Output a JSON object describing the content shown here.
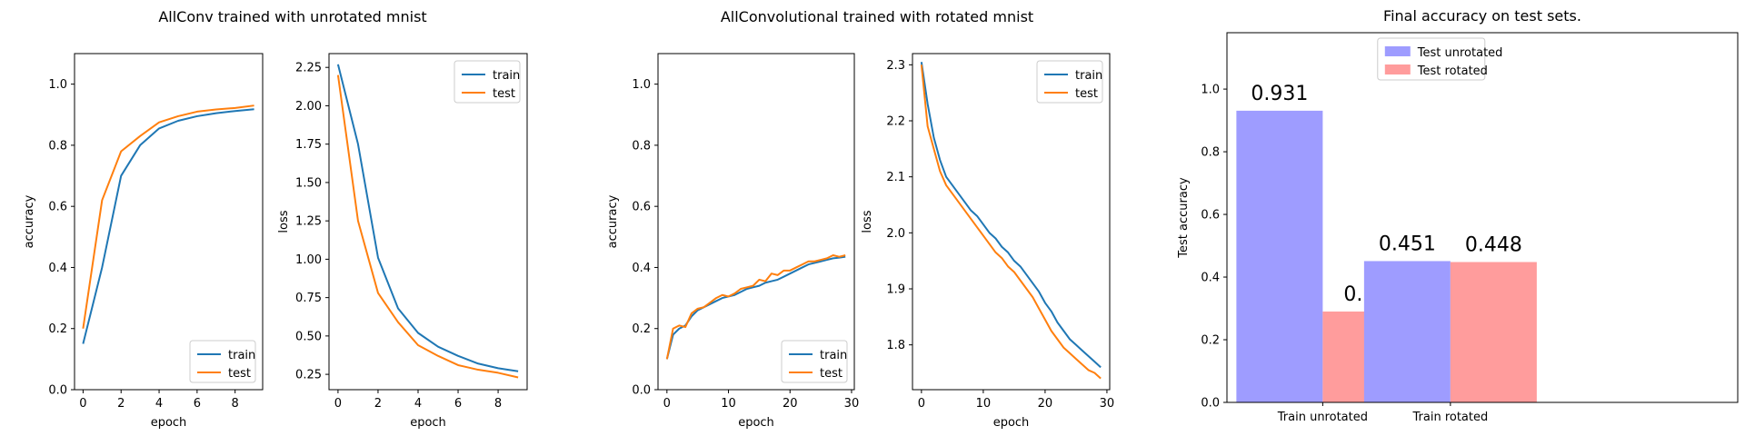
{
  "suptitles": {
    "left": "AllConv trained with unrotated mnist",
    "middle": "AllConvolutional trained with rotated mnist"
  },
  "colors": {
    "train": "#1f77b4",
    "test": "#ff7f0e",
    "bar_unrotated": "#9e9cff",
    "bar_rotated": "#ff9c9c"
  },
  "chart_data": [
    {
      "type": "line",
      "xlabel": "epoch",
      "ylabel": "accuracy",
      "xlim": [
        -0.45,
        9.45
      ],
      "ylim": [
        0.0,
        1.1
      ],
      "xticks": [
        0,
        2,
        4,
        6,
        8
      ],
      "yticks": [
        0.0,
        0.2,
        0.4,
        0.6,
        0.8,
        1.0
      ],
      "legend": "lower right",
      "series": [
        {
          "name": "train",
          "x": [
            0,
            1,
            2,
            3,
            4,
            5,
            6,
            7,
            8,
            9
          ],
          "y": [
            0.15,
            0.4,
            0.7,
            0.8,
            0.855,
            0.88,
            0.895,
            0.905,
            0.912,
            0.918
          ]
        },
        {
          "name": "test",
          "x": [
            0,
            1,
            2,
            3,
            4,
            5,
            6,
            7,
            8,
            9
          ],
          "y": [
            0.2,
            0.62,
            0.78,
            0.83,
            0.875,
            0.895,
            0.91,
            0.917,
            0.922,
            0.93
          ]
        }
      ]
    },
    {
      "type": "line",
      "xlabel": "epoch",
      "ylabel": "loss",
      "xlim": [
        -0.45,
        9.45
      ],
      "ylim": [
        0.15,
        2.34
      ],
      "xticks": [
        0,
        2,
        4,
        6,
        8
      ],
      "yticks": [
        0.25,
        0.5,
        0.75,
        1.0,
        1.25,
        1.5,
        1.75,
        2.0,
        2.25
      ],
      "legend": "upper right",
      "series": [
        {
          "name": "train",
          "x": [
            0,
            1,
            2,
            3,
            4,
            5,
            6,
            7,
            8,
            9
          ],
          "y": [
            2.27,
            1.75,
            1.01,
            0.68,
            0.52,
            0.43,
            0.37,
            0.32,
            0.29,
            0.27
          ]
        },
        {
          "name": "test",
          "x": [
            0,
            1,
            2,
            3,
            4,
            5,
            6,
            7,
            8,
            9
          ],
          "y": [
            2.2,
            1.25,
            0.78,
            0.59,
            0.44,
            0.37,
            0.31,
            0.28,
            0.26,
            0.23
          ]
        }
      ]
    },
    {
      "type": "line",
      "xlabel": "epoch",
      "ylabel": "accuracy",
      "xlim": [
        -1.45,
        30.45
      ],
      "ylim": [
        0.0,
        1.1
      ],
      "xticks": [
        0,
        10,
        20,
        30
      ],
      "yticks": [
        0.0,
        0.2,
        0.4,
        0.6,
        0.8,
        1.0
      ],
      "legend": "lower right",
      "series": [
        {
          "name": "train",
          "x": [
            0,
            1,
            2,
            3,
            4,
            5,
            6,
            7,
            8,
            9,
            10,
            11,
            12,
            13,
            14,
            15,
            16,
            17,
            18,
            19,
            20,
            21,
            22,
            23,
            24,
            25,
            26,
            27,
            28,
            29
          ],
          "y": [
            0.1,
            0.18,
            0.2,
            0.21,
            0.24,
            0.26,
            0.27,
            0.28,
            0.29,
            0.3,
            0.305,
            0.31,
            0.32,
            0.33,
            0.335,
            0.34,
            0.35,
            0.355,
            0.36,
            0.37,
            0.38,
            0.39,
            0.4,
            0.41,
            0.415,
            0.42,
            0.425,
            0.43,
            0.432,
            0.435
          ]
        },
        {
          "name": "test",
          "x": [
            0,
            1,
            2,
            3,
            4,
            5,
            6,
            7,
            8,
            9,
            10,
            11,
            12,
            13,
            14,
            15,
            16,
            17,
            18,
            19,
            20,
            21,
            22,
            23,
            24,
            25,
            26,
            27,
            28,
            29
          ],
          "y": [
            0.1,
            0.2,
            0.21,
            0.205,
            0.25,
            0.265,
            0.27,
            0.285,
            0.3,
            0.31,
            0.305,
            0.315,
            0.33,
            0.335,
            0.34,
            0.36,
            0.355,
            0.38,
            0.375,
            0.39,
            0.39,
            0.4,
            0.41,
            0.42,
            0.42,
            0.425,
            0.43,
            0.44,
            0.435,
            0.44
          ]
        }
      ]
    },
    {
      "type": "line",
      "xlabel": "epoch",
      "ylabel": "loss",
      "xlim": [
        -1.45,
        30.45
      ],
      "ylim": [
        1.72,
        2.32
      ],
      "xticks": [
        0,
        10,
        20,
        30
      ],
      "yticks": [
        1.8,
        1.9,
        2.0,
        2.1,
        2.2,
        2.3
      ],
      "legend": "upper right",
      "series": [
        {
          "name": "train",
          "x": [
            0,
            1,
            2,
            3,
            4,
            5,
            6,
            7,
            8,
            9,
            10,
            11,
            12,
            13,
            14,
            15,
            16,
            17,
            18,
            19,
            20,
            21,
            22,
            23,
            24,
            25,
            26,
            27,
            28,
            29
          ],
          "y": [
            2.305,
            2.23,
            2.17,
            2.13,
            2.1,
            2.085,
            2.07,
            2.055,
            2.04,
            2.03,
            2.015,
            2.0,
            1.99,
            1.975,
            1.965,
            1.95,
            1.94,
            1.925,
            1.91,
            1.895,
            1.875,
            1.86,
            1.84,
            1.825,
            1.81,
            1.8,
            1.79,
            1.78,
            1.77,
            1.76
          ]
        },
        {
          "name": "test",
          "x": [
            0,
            1,
            2,
            3,
            4,
            5,
            6,
            7,
            8,
            9,
            10,
            11,
            12,
            13,
            14,
            15,
            16,
            17,
            18,
            19,
            20,
            21,
            22,
            23,
            24,
            25,
            26,
            27,
            28,
            29
          ],
          "y": [
            2.3,
            2.19,
            2.15,
            2.11,
            2.085,
            2.07,
            2.055,
            2.04,
            2.025,
            2.01,
            1.995,
            1.98,
            1.965,
            1.955,
            1.94,
            1.93,
            1.915,
            1.9,
            1.885,
            1.865,
            1.845,
            1.825,
            1.81,
            1.795,
            1.785,
            1.775,
            1.765,
            1.755,
            1.75,
            1.74
          ]
        }
      ]
    },
    {
      "type": "bar",
      "title": "Final accuracy on test sets.",
      "ylabel": "Test accuracy",
      "categories": [
        "Train unrotated",
        "Train rotated"
      ],
      "ylim": [
        0.0,
        1.18
      ],
      "yticks": [
        0.0,
        0.2,
        0.4,
        0.6,
        0.8,
        1.0
      ],
      "legend": "upper center",
      "series": [
        {
          "name": "Test unrotated",
          "values": [
            0.931,
            0.451
          ],
          "labels": [
            "0.931",
            "0.451"
          ]
        },
        {
          "name": "Test rotated",
          "values": [
            0.29,
            0.448
          ],
          "labels": [
            "0.29",
            "0.448"
          ]
        }
      ]
    }
  ]
}
